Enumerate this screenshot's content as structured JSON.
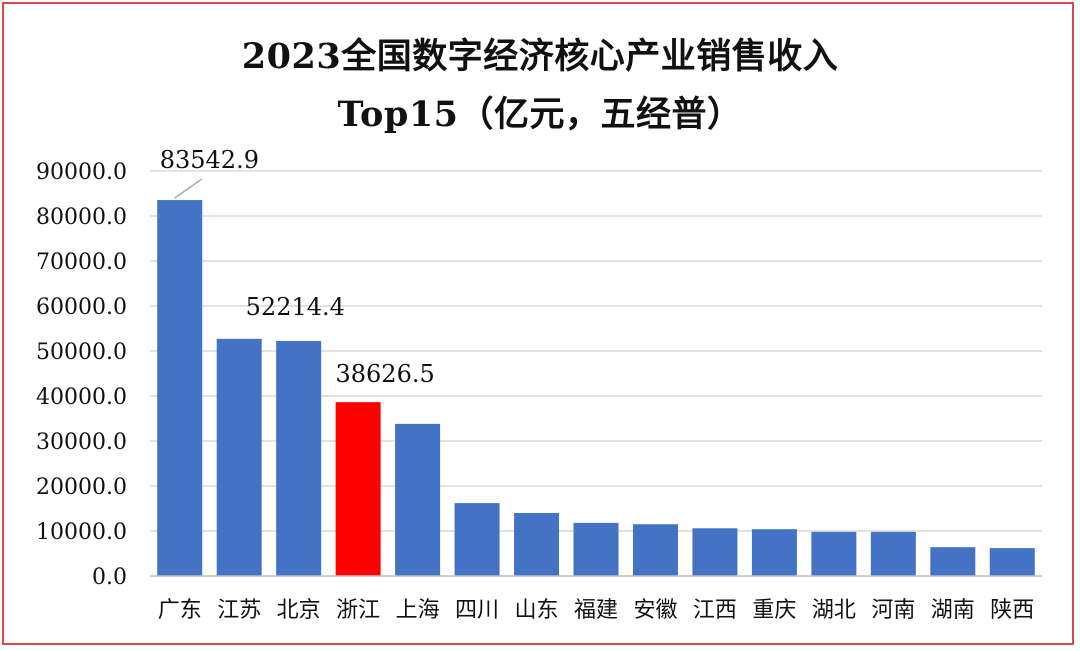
{
  "chart_data": {
    "type": "bar",
    "title_line1": "2023全国数字经济核心产业销售收入",
    "title_line2": "Top15（亿元，五经普）",
    "categories": [
      "广东",
      "江苏",
      "北京",
      "浙江",
      "上海",
      "四川",
      "山东",
      "福建",
      "安徽",
      "江西",
      "重庆",
      "湖北",
      "河南",
      "湖南",
      "陕西"
    ],
    "values": [
      83542.9,
      52700,
      52214.4,
      38626.5,
      33800,
      16200,
      14000,
      11800,
      11500,
      10600,
      10400,
      9800,
      9800,
      6400,
      6200
    ],
    "highlight_index": 3,
    "data_labels": [
      {
        "index": 0,
        "text": "83542.9"
      },
      {
        "index": 2,
        "text": "52214.4"
      },
      {
        "index": 3,
        "text": "38626.5"
      }
    ],
    "yticks": [
      "0.0",
      "10000.0",
      "20000.0",
      "30000.0",
      "40000.0",
      "50000.0",
      "60000.0",
      "70000.0",
      "80000.0",
      "90000.0"
    ],
    "ylim": [
      0,
      90000
    ],
    "grid": true,
    "colors": {
      "bar": "#4472c4",
      "highlight": "#ff0000",
      "grid": "#d9d9d9",
      "axis": "#bfbfbf",
      "frame": "#d84a4a"
    }
  }
}
